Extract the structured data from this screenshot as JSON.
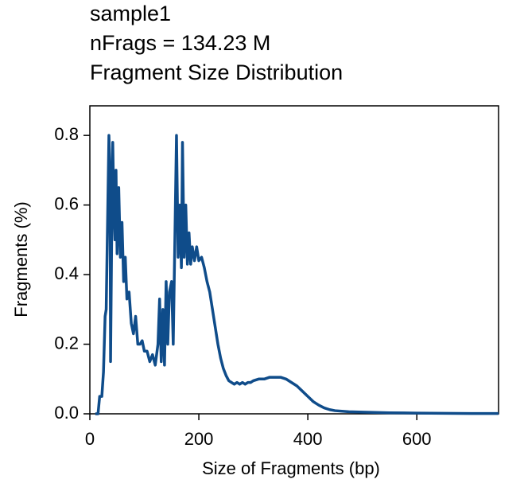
{
  "chart_data": {
    "type": "line",
    "title": [
      "sample1",
      "nFrags = 134.23 M",
      "Fragment Size Distribution"
    ],
    "xlabel": "Size of Fragments (bp)",
    "ylabel": "Fragments (%)",
    "xlim": [
      0,
      750
    ],
    "ylim": [
      0,
      0.885
    ],
    "xticks": [
      0,
      200,
      400,
      600
    ],
    "yticks": [
      {
        "value": 0,
        "label": "0.0"
      },
      0.2,
      0.4,
      0.6,
      0.8
    ],
    "series": [
      {
        "color": "#0f4c8a",
        "x": [
          10,
          15,
          18,
          22,
          25,
          28,
          30,
          33,
          35,
          37,
          38,
          40,
          42,
          44,
          46,
          48,
          50,
          53,
          56,
          59,
          62,
          65,
          68,
          72,
          76,
          80,
          84,
          88,
          92,
          96,
          100,
          105,
          110,
          115,
          120,
          125,
          128,
          131,
          134,
          137,
          140,
          143,
          146,
          150,
          153,
          156,
          159,
          162,
          165,
          168,
          170,
          173,
          176,
          179,
          182,
          185,
          188,
          192,
          196,
          200,
          205,
          210,
          215,
          220,
          225,
          230,
          235,
          240,
          245,
          250,
          255,
          260,
          265,
          270,
          275,
          280,
          285,
          290,
          295,
          300,
          310,
          320,
          330,
          340,
          350,
          360,
          370,
          380,
          390,
          400,
          410,
          420,
          430,
          440,
          450,
          475,
          500,
          550,
          600,
          650,
          700,
          750
        ],
        "values": [
          0,
          0,
          0.05,
          0.05,
          0.12,
          0.28,
          0.3,
          0.6,
          0.8,
          0.7,
          0.15,
          0.5,
          0.78,
          0.6,
          0.5,
          0.7,
          0.46,
          0.65,
          0.45,
          0.55,
          0.38,
          0.45,
          0.33,
          0.35,
          0.26,
          0.23,
          0.28,
          0.2,
          0.2,
          0.21,
          0.18,
          0.18,
          0.15,
          0.17,
          0.14,
          0.2,
          0.33,
          0.15,
          0.3,
          0.14,
          0.38,
          0.2,
          0.35,
          0.38,
          0.2,
          0.5,
          0.8,
          0.45,
          0.6,
          0.42,
          0.78,
          0.45,
          0.6,
          0.43,
          0.52,
          0.43,
          0.48,
          0.44,
          0.48,
          0.44,
          0.45,
          0.42,
          0.38,
          0.35,
          0.3,
          0.25,
          0.2,
          0.16,
          0.13,
          0.11,
          0.095,
          0.09,
          0.085,
          0.09,
          0.085,
          0.09,
          0.085,
          0.09,
          0.09,
          0.095,
          0.1,
          0.1,
          0.105,
          0.105,
          0.105,
          0.1,
          0.09,
          0.08,
          0.065,
          0.05,
          0.035,
          0.025,
          0.017,
          0.012,
          0.009,
          0.006,
          0.005,
          0.003,
          0.002,
          0.0015,
          0.001,
          0.001
        ]
      }
    ]
  }
}
